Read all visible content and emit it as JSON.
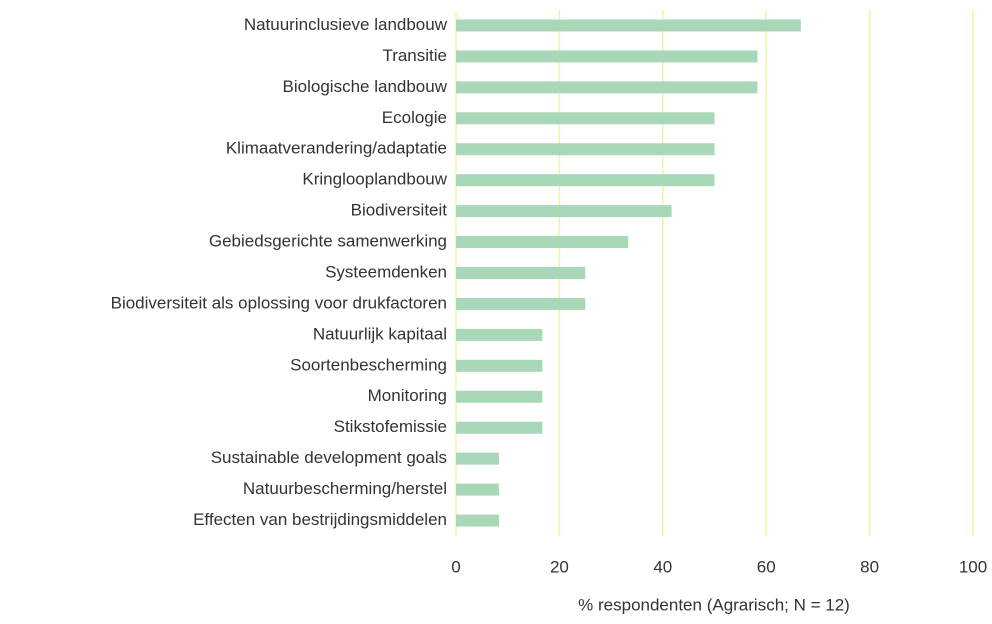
{
  "chart_data": {
    "type": "barh",
    "categories": [
      "Natuurinclusieve landbouw",
      "Transitie",
      "Biologische landbouw",
      "Ecologie",
      "Klimaatverandering/adaptatie",
      "Kringlooplandbouw",
      "Biodiversiteit",
      "Gebiedsgerichte samenwerking",
      "Systeemdenken",
      "Biodiversiteit als oplossing voor drukfactoren",
      "Natuurlijk kapitaal",
      "Soortenbescherming",
      "Monitoring",
      "Stikstofemissie",
      "Sustainable development goals",
      "Natuurbescherming/herstel",
      "Effecten van bestrijdingsmiddelen"
    ],
    "values": [
      66.7,
      58.3,
      58.3,
      50,
      50,
      50,
      41.7,
      33.3,
      25,
      25,
      16.7,
      16.7,
      16.7,
      16.7,
      8.3,
      8.3,
      8.3
    ],
    "color": "#a9d8b8",
    "xlabel": "% respondenten (Agrarisch; N = 12)",
    "xlim": [
      0,
      100
    ],
    "xticks": [
      0,
      20,
      40,
      60,
      80,
      100
    ],
    "grid": true,
    "grid_color": "#eef5a8"
  }
}
